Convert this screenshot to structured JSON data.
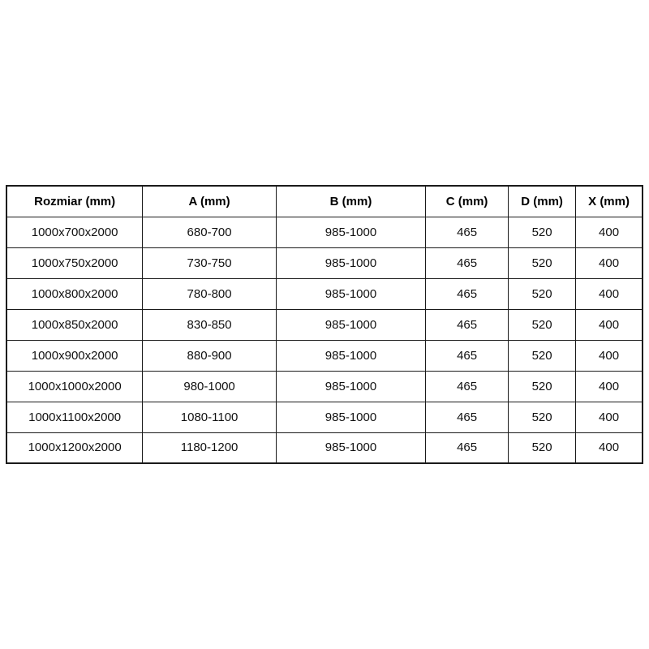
{
  "colors": {
    "background": "#ffffff",
    "border": "#1a1a1a",
    "text": "#111111"
  },
  "chart_data": {
    "type": "table",
    "title": "",
    "columns": [
      "Rozmiar (mm)",
      "A (mm)",
      "B (mm)",
      "C (mm)",
      "D (mm)",
      "X (mm)"
    ],
    "rows": [
      [
        "1000x700x2000",
        "680-700",
        "985-1000",
        "465",
        "520",
        "400"
      ],
      [
        "1000x750x2000",
        "730-750",
        "985-1000",
        "465",
        "520",
        "400"
      ],
      [
        "1000x800x2000",
        "780-800",
        "985-1000",
        "465",
        "520",
        "400"
      ],
      [
        "1000x850x2000",
        "830-850",
        "985-1000",
        "465",
        "520",
        "400"
      ],
      [
        "1000x900x2000",
        "880-900",
        "985-1000",
        "465",
        "520",
        "400"
      ],
      [
        "1000x1000x2000",
        "980-1000",
        "985-1000",
        "465",
        "520",
        "400"
      ],
      [
        "1000x1100x2000",
        "1080-1100",
        "985-1000",
        "465",
        "520",
        "400"
      ],
      [
        "1000x1200x2000",
        "1180-1200",
        "985-1000",
        "465",
        "520",
        "400"
      ]
    ]
  }
}
